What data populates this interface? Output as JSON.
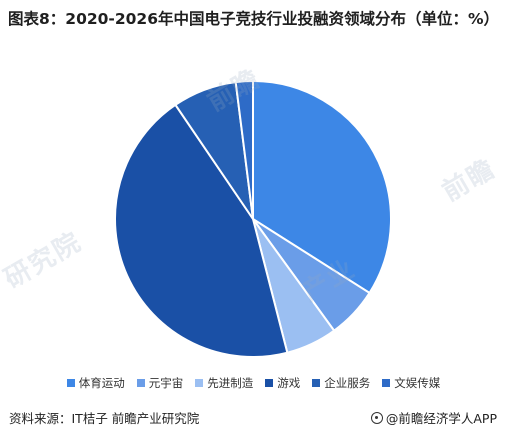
{
  "title": "图表8：2020-2026年中国电子竞技行业投融资领域分布（单位：%）",
  "source": "资料来源：IT桔子  前瞻产业研究院",
  "brand": "@前瞻经济学人APP",
  "chart_data": {
    "type": "pie",
    "title": "图表8：2020-2026年中国电子竞技行业投融资领域分布（单位：%）",
    "unit": "%",
    "start_angle_deg": 0,
    "direction": "clockwise",
    "legend_position": "bottom",
    "slices": [
      {
        "label": "体育运动",
        "value": 34.0,
        "color": "#3d87e6"
      },
      {
        "label": "元宇宙",
        "value": 6.0,
        "color": "#6a9de8"
      },
      {
        "label": "先进制造",
        "value": 6.0,
        "color": "#9bbff2"
      },
      {
        "label": "游戏",
        "value": 44.5,
        "color": "#1a50a6"
      },
      {
        "label": "企业服务",
        "value": 7.5,
        "color": "#2660b4"
      },
      {
        "label": "文娱传媒",
        "value": 2.0,
        "color": "#2e6bc7"
      }
    ]
  }
}
